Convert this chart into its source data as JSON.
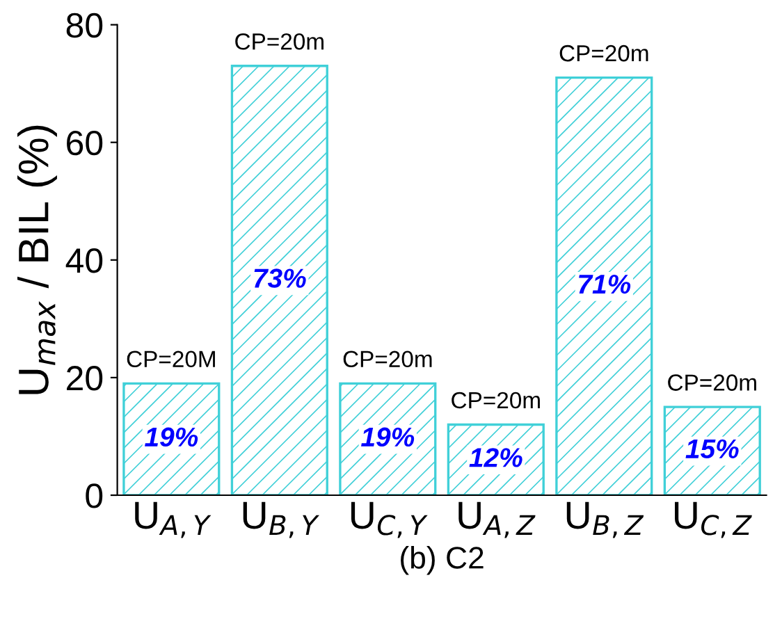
{
  "chart_data": {
    "type": "bar",
    "xlabel": "(b) C2",
    "ylabel": "U$_{max}$ / BIL (%)",
    "categories": [
      "U$_{A,Y}$",
      "U$_{B,Y}$",
      "U$_{C,Y}$",
      "U$_{A,Z}$",
      "U$_{B,Z}$",
      "U$_{C,Z}$"
    ],
    "values": [
      19,
      73,
      19,
      12,
      71,
      15
    ],
    "value_labels": [
      "19%",
      "73%",
      "19%",
      "12%",
      "71%",
      "15%"
    ],
    "color": "#40d0d8",
    "ylim": [
      0,
      80
    ],
    "yticks": [
      0,
      20,
      40,
      60,
      80
    ],
    "grid": false,
    "legend": false,
    "annotations": [
      {
        "text": "CP=20M",
        "x": "U$_{A,Y}$",
        "y": 19
      },
      {
        "text": "CP=20m",
        "x": "U$_{B,Y}$",
        "y": 73
      },
      {
        "text": "CP=20m",
        "x": "U$_{C,Y}$",
        "y": 19
      },
      {
        "text": "CP=20m",
        "x": "U$_{A,Z}$",
        "y": 12
      },
      {
        "text": "CP=20m",
        "x": "U$_{B,Z}$",
        "y": 71
      },
      {
        "text": "CP=20m",
        "x": "U$_{C,Z}$",
        "y": 15
      }
    ]
  }
}
